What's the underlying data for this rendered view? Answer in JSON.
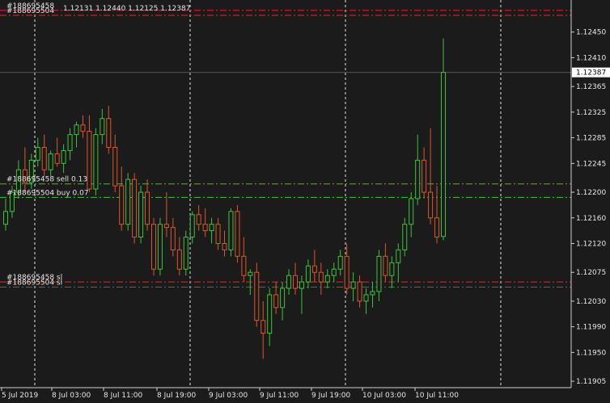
{
  "header": {
    "ohlc": "1.12131 1.12440 1.12125 1.12387",
    "trade_labels": [
      "#188695458",
      "#188695504"
    ]
  },
  "current_price": "1.12387",
  "price_axis": {
    "ticks": [
      {
        "v": 1.1245,
        "t": "1.12450"
      },
      {
        "v": 1.1241,
        "t": "1.12410"
      },
      {
        "v": 1.12365,
        "t": "1.12365"
      },
      {
        "v": 1.12325,
        "t": "1.12325"
      },
      {
        "v": 1.12285,
        "t": "1.12285"
      },
      {
        "v": 1.12245,
        "t": "1.12245"
      },
      {
        "v": 1.122,
        "t": "1.12200"
      },
      {
        "v": 1.1216,
        "t": "1.12160"
      },
      {
        "v": 1.1212,
        "t": "1.12120"
      },
      {
        "v": 1.12075,
        "t": "1.12075"
      },
      {
        "v": 1.1203,
        "t": "1.12030"
      },
      {
        "v": 1.1199,
        "t": "1.11990"
      },
      {
        "v": 1.1195,
        "t": "1.11950"
      },
      {
        "v": 1.11905,
        "t": "1.11905"
      }
    ]
  },
  "time_axis": [
    "5 Jul 2019",
    "8 Jul 03:00",
    "8 Jul 11:00",
    "8 Jul 19:00",
    "9 Jul 03:00",
    "9 Jul 11:00",
    "9 Jul 19:00",
    "10 Jul 03:00",
    "10 Jul 11:00"
  ],
  "orders": [
    {
      "label": "#188695458 sell 0.13",
      "price": 1.12213,
      "color": "#3cc23c"
    },
    {
      "label": "#188695504 buy 0.07",
      "price": 1.12192,
      "color": "#3cc23c"
    },
    {
      "label": "#188695458 sl",
      "price": 1.1206,
      "color": "#e0282a"
    },
    {
      "label": "#188695504 sl",
      "price": 1.12052,
      "color": "#e0282a"
    },
    {
      "label": "",
      "price": 1.12484,
      "color": "#e0282a"
    },
    {
      "label": "",
      "price": 1.12476,
      "color": "#e0282a"
    }
  ],
  "colors": {
    "background": "#1b1b1b",
    "bull": "#3cc23c",
    "bear": "#e0542a",
    "grid": "#ffffff",
    "axis_text": "#e6e6e6"
  },
  "chart_data": {
    "type": "candlestick",
    "symbol_timeframe": "H1",
    "ylim": [
      1.11895,
      1.125
    ],
    "candles": [
      [
        1.1215,
        1.1219,
        1.1214,
        1.1217
      ],
      [
        1.1217,
        1.1221,
        1.1216,
        1.122
      ],
      [
        1.122,
        1.1225,
        1.1219,
        1.12235
      ],
      [
        1.12235,
        1.1227,
        1.122,
        1.12215
      ],
      [
        1.12215,
        1.1226,
        1.12205,
        1.1225
      ],
      [
        1.1225,
        1.12285,
        1.1224,
        1.1227
      ],
      [
        1.1227,
        1.1229,
        1.12225,
        1.12235
      ],
      [
        1.12235,
        1.12265,
        1.12225,
        1.1226
      ],
      [
        1.1226,
        1.12285,
        1.1224,
        1.12245
      ],
      [
        1.12245,
        1.12275,
        1.1223,
        1.12265
      ],
      [
        1.12265,
        1.123,
        1.1225,
        1.1229
      ],
      [
        1.1229,
        1.1231,
        1.1227,
        1.12305
      ],
      [
        1.12305,
        1.1232,
        1.12285,
        1.12295
      ],
      [
        1.12295,
        1.1232,
        1.122,
        1.12205
      ],
      [
        1.12205,
        1.123,
        1.12195,
        1.1229
      ],
      [
        1.1229,
        1.1233,
        1.12275,
        1.12315
      ],
      [
        1.12315,
        1.12335,
        1.1226,
        1.1227
      ],
      [
        1.1227,
        1.1229,
        1.122,
        1.1221
      ],
      [
        1.1221,
        1.1224,
        1.1214,
        1.1215
      ],
      [
        1.1215,
        1.1223,
        1.1214,
        1.1222
      ],
      [
        1.1222,
        1.1223,
        1.1212,
        1.1213
      ],
      [
        1.1213,
        1.1221,
        1.1212,
        1.122
      ],
      [
        1.122,
        1.1222,
        1.1214,
        1.1215
      ],
      [
        1.1215,
        1.1216,
        1.1207,
        1.1208
      ],
      [
        1.1208,
        1.1216,
        1.1207,
        1.1215
      ],
      [
        1.1215,
        1.122,
        1.1213,
        1.12145
      ],
      [
        1.12145,
        1.1216,
        1.121,
        1.1211
      ],
      [
        1.1211,
        1.1213,
        1.1207,
        1.1208
      ],
      [
        1.1208,
        1.1214,
        1.1207,
        1.1213
      ],
      [
        1.1213,
        1.1217,
        1.1212,
        1.12165
      ],
      [
        1.12165,
        1.1218,
        1.1214,
        1.1215
      ],
      [
        1.1215,
        1.12175,
        1.1213,
        1.1214
      ],
      [
        1.1214,
        1.1216,
        1.1212,
        1.1215
      ],
      [
        1.1215,
        1.1216,
        1.1211,
        1.1212
      ],
      [
        1.1212,
        1.1214,
        1.121,
        1.1211
      ],
      [
        1.1211,
        1.12175,
        1.121,
        1.1217
      ],
      [
        1.1217,
        1.1218,
        1.1209,
        1.121
      ],
      [
        1.121,
        1.1213,
        1.1206,
        1.1207
      ],
      [
        1.1207,
        1.1208,
        1.1204,
        1.12075
      ],
      [
        1.12075,
        1.1209,
        1.1199,
        1.12
      ],
      [
        1.12,
        1.1203,
        1.1194,
        1.1198
      ],
      [
        1.1198,
        1.1205,
        1.1196,
        1.1204
      ],
      [
        1.1204,
        1.1206,
        1.1201,
        1.1202
      ],
      [
        1.1202,
        1.1206,
        1.12,
        1.1205
      ],
      [
        1.1205,
        1.1208,
        1.1204,
        1.1207
      ],
      [
        1.1207,
        1.1209,
        1.1204,
        1.1205
      ],
      [
        1.1205,
        1.1207,
        1.1201,
        1.1206
      ],
      [
        1.1206,
        1.12095,
        1.1205,
        1.12085
      ],
      [
        1.12085,
        1.1211,
        1.1206,
        1.12075
      ],
      [
        1.12075,
        1.1209,
        1.1204,
        1.1206
      ],
      [
        1.1206,
        1.1208,
        1.1205,
        1.1207
      ],
      [
        1.1207,
        1.1209,
        1.1206,
        1.1208
      ],
      [
        1.1208,
        1.1211,
        1.1207,
        1.121
      ],
      [
        1.121,
        1.1212,
        1.1204,
        1.1205
      ],
      [
        1.1205,
        1.12075,
        1.1203,
        1.1206
      ],
      [
        1.1206,
        1.1207,
        1.1202,
        1.1203
      ],
      [
        1.1203,
        1.1205,
        1.1201,
        1.1204
      ],
      [
        1.1204,
        1.1206,
        1.1202,
        1.12045
      ],
      [
        1.12045,
        1.1211,
        1.1203,
        1.121
      ],
      [
        1.121,
        1.1212,
        1.1206,
        1.1207
      ],
      [
        1.1207,
        1.121,
        1.1205,
        1.1209
      ],
      [
        1.1209,
        1.1212,
        1.1206,
        1.1211
      ],
      [
        1.1211,
        1.1216,
        1.121,
        1.1215
      ],
      [
        1.1215,
        1.122,
        1.1213,
        1.1219
      ],
      [
        1.1219,
        1.1229,
        1.1218,
        1.1225
      ],
      [
        1.1225,
        1.1227,
        1.1219,
        1.122
      ],
      [
        1.122,
        1.123,
        1.1215,
        1.1216
      ],
      [
        1.1216,
        1.1221,
        1.1212,
        1.1213
      ],
      [
        1.12131,
        1.1244,
        1.12125,
        1.12387
      ]
    ]
  }
}
